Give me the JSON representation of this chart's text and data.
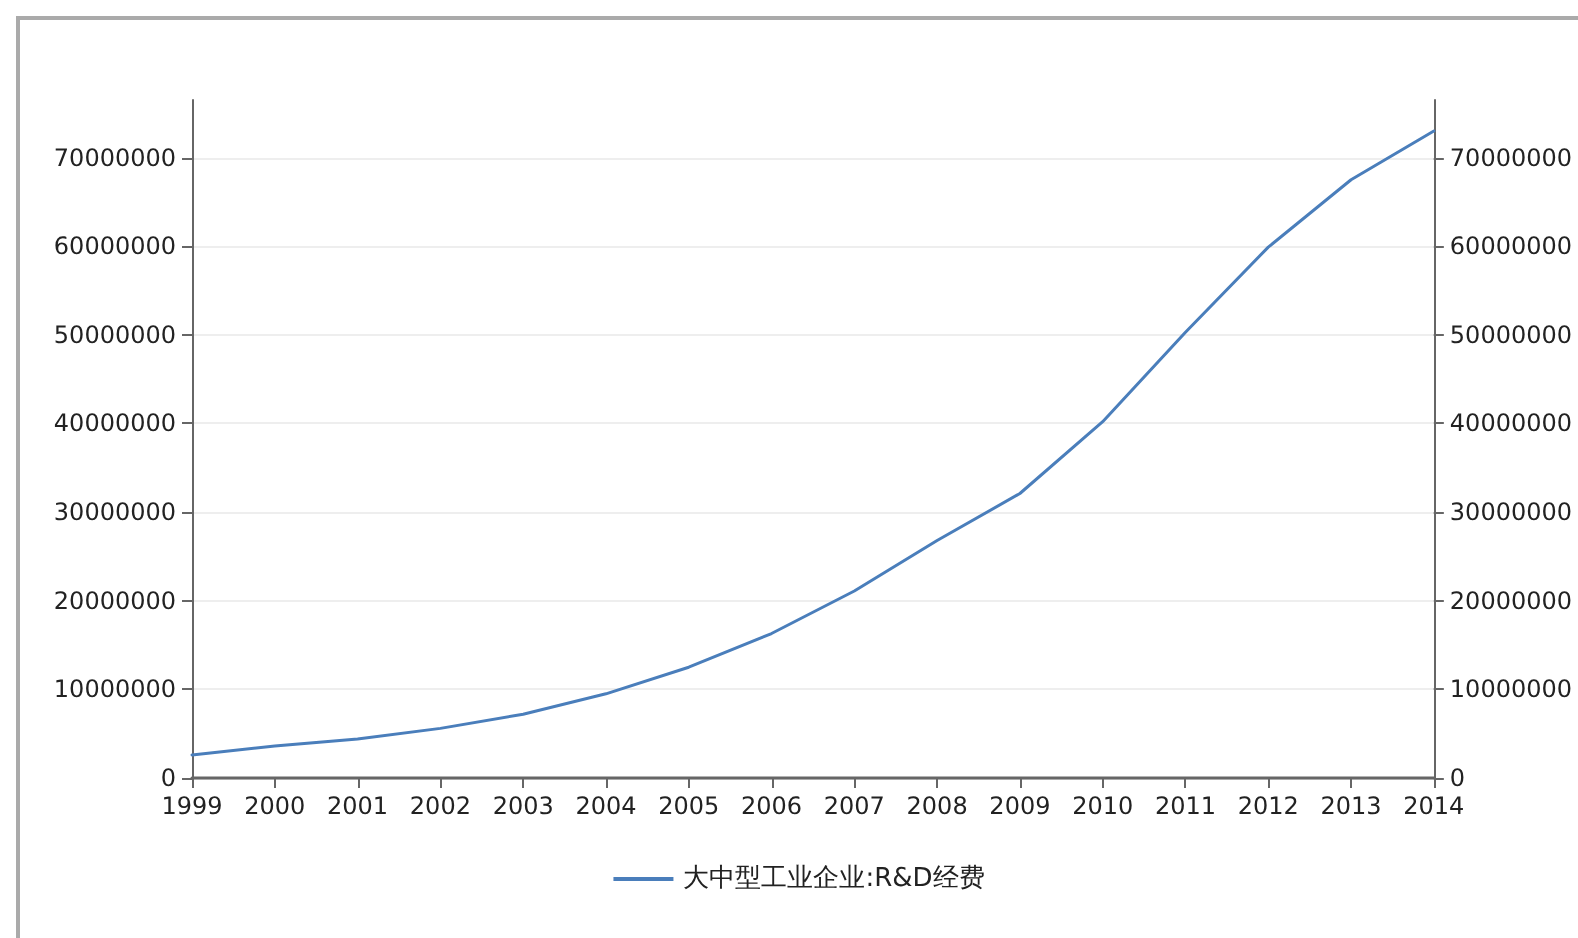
{
  "chart_data": {
    "type": "line",
    "x": [
      1999,
      2000,
      2001,
      2002,
      2003,
      2004,
      2005,
      2006,
      2007,
      2008,
      2009,
      2010,
      2011,
      2012,
      2013,
      2014
    ],
    "series": [
      {
        "name": "大中型工业企业:R&D经费",
        "color": "#4a7ebb",
        "values": [
          2600000,
          3600000,
          4400000,
          5600000,
          7200000,
          9500000,
          12500000,
          16300000,
          21100000,
          26800000,
          32100000,
          40200000,
          50300000,
          59900000,
          67500000,
          73000000
        ]
      }
    ],
    "xlim": [
      1999,
      2014
    ],
    "xticks": [
      1999,
      2000,
      2001,
      2002,
      2003,
      2004,
      2005,
      2006,
      2007,
      2008,
      2009,
      2010,
      2011,
      2012,
      2013,
      2014
    ],
    "ylim": [
      0,
      76500000
    ],
    "yticks": [
      0,
      10000000,
      20000000,
      30000000,
      40000000,
      50000000,
      60000000,
      70000000
    ],
    "y2lim": [
      0,
      76500000
    ],
    "y2ticks": [
      0,
      10000000,
      20000000,
      30000000,
      40000000,
      50000000,
      60000000,
      70000000
    ],
    "grid": "y",
    "legend": "bottom",
    "marker": "none",
    "line_style": "solid"
  }
}
